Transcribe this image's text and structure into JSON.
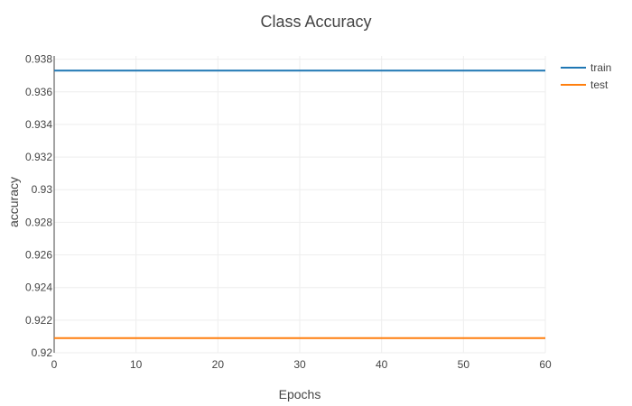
{
  "chart_data": {
    "type": "line",
    "title": "Class Accuracy",
    "xlabel": "Epochs",
    "ylabel": "accuracy",
    "xlim": [
      0,
      60
    ],
    "ylim": [
      0.92,
      0.9382
    ],
    "x_ticks": [
      0,
      10,
      20,
      30,
      40,
      50,
      60
    ],
    "x_tick_labels": [
      "0",
      "10",
      "20",
      "30",
      "40",
      "50",
      "60"
    ],
    "y_ticks": [
      0.92,
      0.922,
      0.924,
      0.926,
      0.928,
      0.93,
      0.932,
      0.934,
      0.936,
      0.938
    ],
    "y_tick_labels": [
      "0.92",
      "0.922",
      "0.924",
      "0.926",
      "0.928",
      "0.93",
      "0.932",
      "0.934",
      "0.936",
      "0.938"
    ],
    "grid": true,
    "legend_position": "top-right",
    "series": [
      {
        "name": "train",
        "color": "#1f77b4",
        "x": [
          0,
          60
        ],
        "y": [
          0.9373,
          0.9373
        ]
      },
      {
        "name": "test",
        "color": "#ff7f0e",
        "x": [
          0,
          60
        ],
        "y": [
          0.9209,
          0.9209
        ]
      }
    ]
  }
}
